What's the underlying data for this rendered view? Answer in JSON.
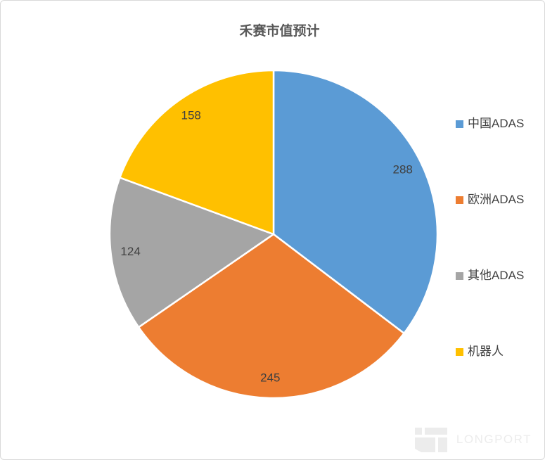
{
  "chart_data": {
    "type": "pie",
    "title": "禾赛市值预计",
    "categories": [
      "中国ADAS",
      "欧洲ADAS",
      "其他ADAS",
      "机器人"
    ],
    "values": [
      288,
      245,
      124,
      158
    ],
    "colors": [
      "#5B9BD5",
      "#ED7D31",
      "#A5A5A5",
      "#FFC000"
    ],
    "data_labels": [
      "288",
      "245",
      "124",
      "158"
    ],
    "total": 815,
    "start_angle_deg": 0,
    "direction": "clockwise",
    "legend_position": "right",
    "slice_border_color": "#FFFFFF",
    "label_color": "#404040"
  },
  "watermark": {
    "brand": "LONGPORT"
  }
}
